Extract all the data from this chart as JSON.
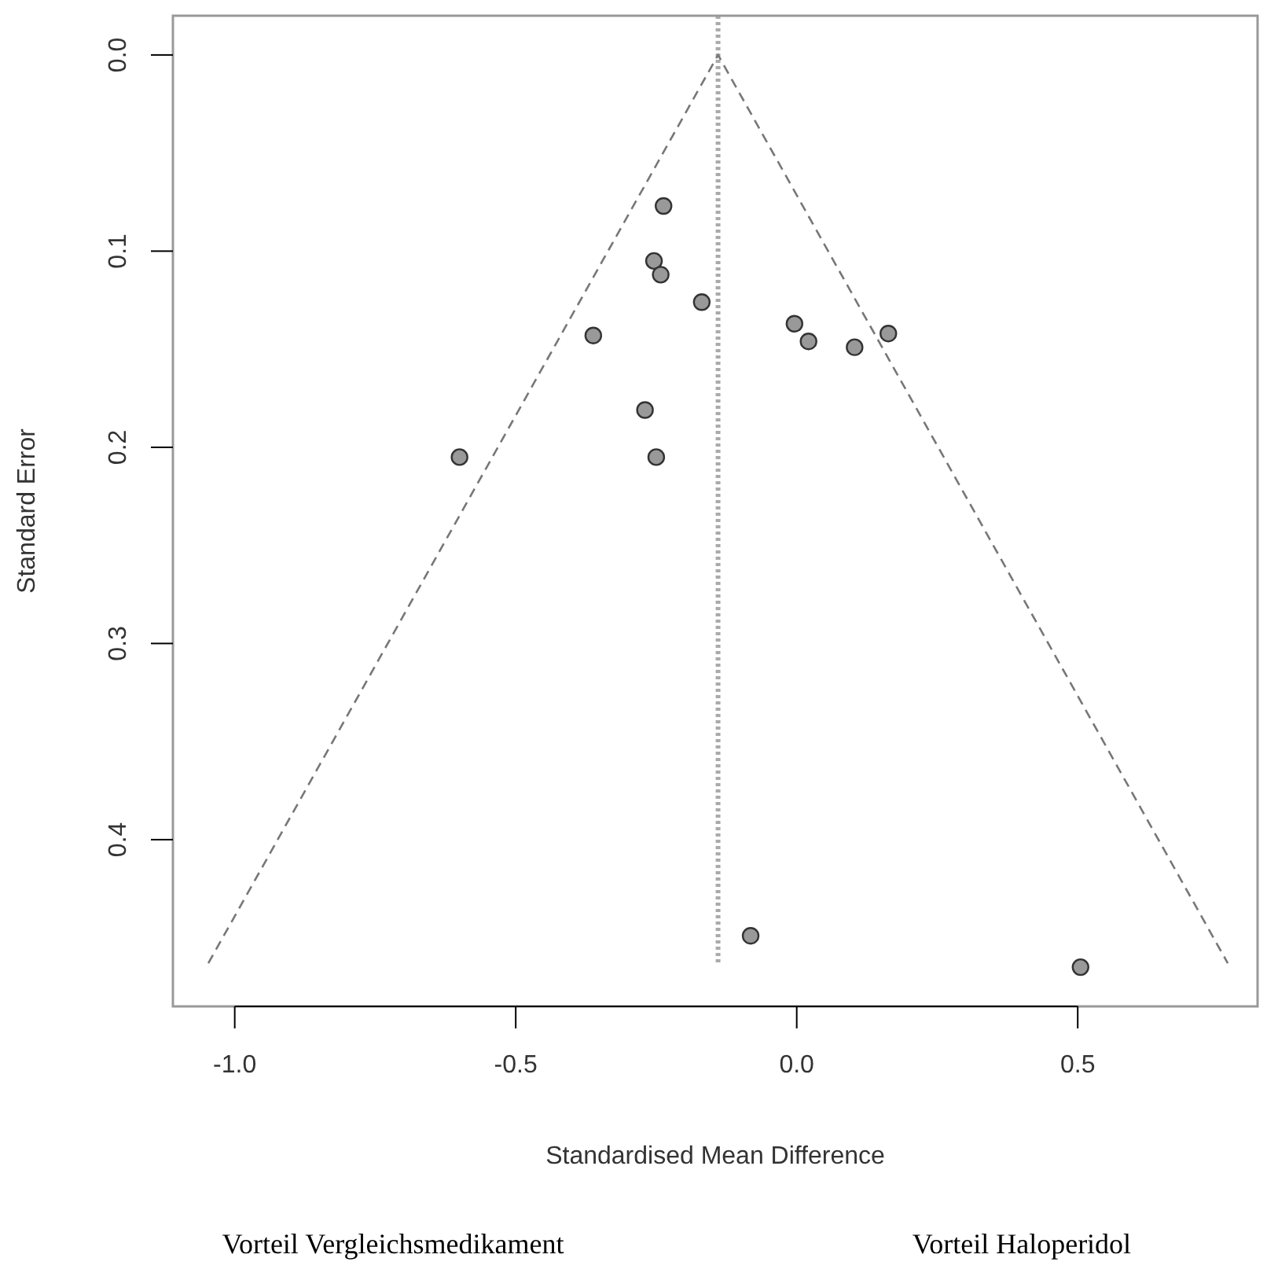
{
  "chart_data": {
    "type": "scatter",
    "xlabel": "Standardised Mean Difference",
    "ylabel": "Standard Error",
    "xlim": [
      -1.11,
      0.82
    ],
    "ylim": [
      0.485,
      -0.02
    ],
    "xticks": [
      {
        "value": -1,
        "label": "-1.0"
      },
      {
        "value": -0.5,
        "label": "-0.5"
      },
      {
        "value": 0,
        "label": "0.0"
      },
      {
        "value": 0.5,
        "label": "0.5"
      }
    ],
    "yticks": [
      {
        "value": 0,
        "label": "0.0"
      },
      {
        "value": 0.1,
        "label": "0.1"
      },
      {
        "value": 0.2,
        "label": "0.2"
      },
      {
        "value": 0.3,
        "label": "0.3"
      },
      {
        "value": 0.4,
        "label": "0.4"
      }
    ],
    "grid": false,
    "marker": "circle",
    "series": [
      {
        "color": "#999999",
        "x": [
          -0.237,
          -0.254,
          -0.242,
          -0.169,
          -0.362,
          -0.004,
          0.021,
          0.103,
          0.163,
          -0.6,
          -0.27,
          -0.25,
          -0.082,
          0.505
        ],
        "values": [
          0.077,
          0.105,
          0.112,
          0.126,
          0.143,
          0.137,
          0.146,
          0.149,
          0.142,
          0.205,
          0.181,
          0.205,
          0.449,
          0.465
        ]
      },
      {
        "type": "line",
        "color": "#777777",
        "line_style": "dashed",
        "marker": "none",
        "x": [
          -1.047,
          -0.14,
          0.767
        ],
        "values": [
          0.463,
          0,
          0.463
        ]
      }
    ],
    "ref_lines": [
      {
        "axis": "x",
        "value": -0.14,
        "color": "#aaaaaa",
        "line_style": "dotted"
      }
    ],
    "annotations": [
      "Vorteil Vergleichsmedikament",
      "Vorteil Haloperidol"
    ]
  }
}
